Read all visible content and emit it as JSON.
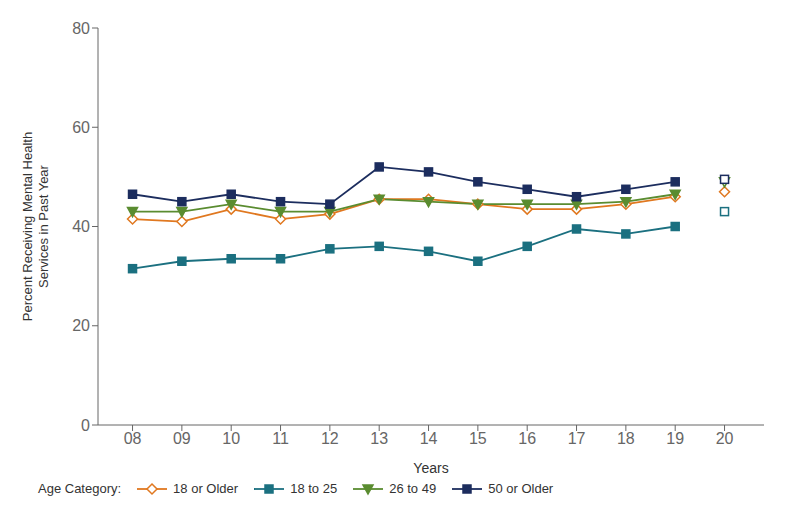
{
  "chart_data": {
    "type": "line",
    "xlabel": "Years",
    "ylabel": "Percent Receiving Mental Health\nServices in Past Year",
    "legend_title": "Age Category:",
    "x": [
      8,
      9,
      10,
      11,
      12,
      13,
      14,
      15,
      16,
      17,
      18,
      19,
      20
    ],
    "xlim": [
      7.3,
      20.8
    ],
    "xticks": [
      {
        "value": 8,
        "label": "08"
      },
      {
        "value": 9,
        "label": "09"
      },
      {
        "value": 10,
        "label": "10"
      },
      {
        "value": 11,
        "label": "11"
      },
      {
        "value": 12,
        "label": "12"
      },
      {
        "value": 13,
        "label": "13"
      },
      {
        "value": 14,
        "label": "14"
      },
      {
        "value": 15,
        "label": "15"
      },
      {
        "value": 16,
        "label": "16"
      },
      {
        "value": 17,
        "label": "17"
      },
      {
        "value": 18,
        "label": "18"
      },
      {
        "value": 19,
        "label": "19"
      },
      {
        "value": 20,
        "label": "20"
      }
    ],
    "ylim": [
      0,
      80
    ],
    "yticks": [
      0,
      20,
      40,
      60,
      80
    ],
    "grid": false,
    "legend": "bottom left",
    "series": [
      {
        "name": "18 or Older",
        "color": "#E07820",
        "marker": "open-diamond",
        "values": [
          41.5,
          41.0,
          43.5,
          41.5,
          42.5,
          45.5,
          45.5,
          44.5,
          43.5,
          43.5,
          44.5,
          46.0,
          47.0
        ]
      },
      {
        "name": "18 to 25",
        "color": "#1B7080",
        "marker": "square",
        "values": [
          31.5,
          33.0,
          33.5,
          33.5,
          35.5,
          36.0,
          35.0,
          33.0,
          36.0,
          39.5,
          38.5,
          40.0,
          43.0
        ]
      },
      {
        "name": "26 to 49",
        "color": "#5A8C30",
        "marker": "triangle-down",
        "values": [
          43.0,
          43.0,
          44.5,
          43.0,
          43.0,
          45.5,
          45.0,
          44.5,
          44.5,
          44.5,
          45.0,
          46.5,
          49.0
        ]
      },
      {
        "name": "50 or Older",
        "color": "#1C2D5E",
        "marker": "square",
        "values": [
          46.5,
          45.0,
          46.5,
          45.0,
          44.5,
          52.0,
          51.0,
          49.0,
          47.5,
          46.0,
          47.5,
          49.0,
          49.5
        ]
      }
    ]
  }
}
